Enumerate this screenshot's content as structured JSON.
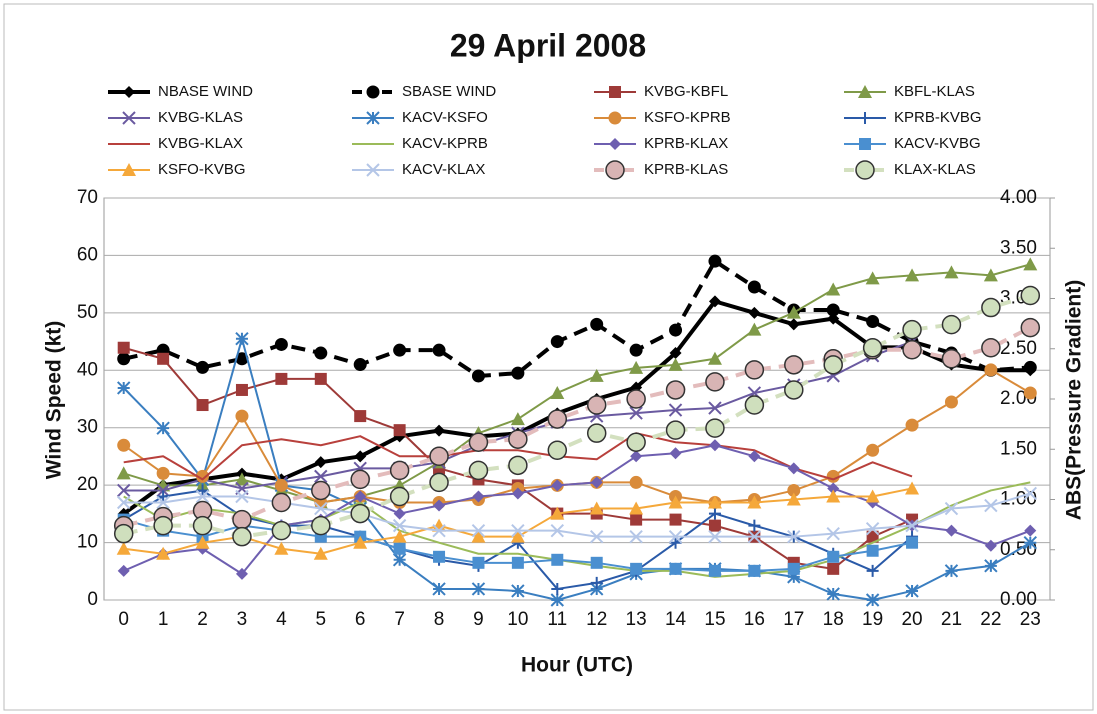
{
  "chart_data": {
    "type": "line",
    "title": "29 April 2008",
    "x_label": "Hour (UTC)",
    "y_label": "Wind Speed (kt)",
    "y2_label": "ABS(Pressure Gradient)",
    "categories": [
      0,
      1,
      2,
      3,
      4,
      5,
      6,
      7,
      8,
      9,
      10,
      11,
      12,
      13,
      14,
      15,
      16,
      17,
      18,
      19,
      20,
      21,
      22,
      23
    ],
    "ylim": [
      0,
      70
    ],
    "yticks": [
      0,
      10,
      20,
      30,
      40,
      50,
      60,
      70
    ],
    "y2lim": [
      0,
      4
    ],
    "y2ticks": [
      {
        "value": 0,
        "label": "0.00"
      },
      {
        "value": 0.5,
        "label": "0.50"
      },
      {
        "value": 1,
        "label": "1.00"
      },
      {
        "value": 1.5,
        "label": "1.50"
      },
      {
        "value": 2,
        "label": "2.00"
      },
      {
        "value": 2.5,
        "label": "2.50"
      },
      {
        "value": 3,
        "label": "3.00"
      },
      {
        "value": 3.5,
        "label": "3.50"
      },
      {
        "value": 4,
        "label": "4.00"
      }
    ],
    "grid": true,
    "series": [
      {
        "name": "NBASE WIND",
        "color": "#000000",
        "marker": "diamond",
        "line_width": 4,
        "dashed": false,
        "values": [
          15,
          20,
          21,
          22,
          21,
          24,
          25,
          28.5,
          29.5,
          28.5,
          29,
          32.5,
          35,
          37,
          43,
          52,
          50,
          48,
          49,
          44,
          44,
          41,
          40,
          40
        ]
      },
      {
        "name": "SBASE WIND",
        "color": "#000000",
        "marker": "circle",
        "line_width": 4,
        "dashed": true,
        "values": [
          42,
          43.5,
          40.5,
          42,
          44.5,
          43,
          41,
          43.5,
          43.5,
          39,
          39.5,
          45,
          48,
          43.5,
          47,
          59,
          54.5,
          50.5,
          50.5,
          48.5,
          45,
          43,
          40,
          40.5
        ]
      },
      {
        "name": "KVBG-KBFL",
        "color": "#9e3a38",
        "marker": "square",
        "line_width": 2,
        "dashed": false,
        "axis": "y2",
        "values": [
          2.51,
          2.4,
          1.94,
          2.09,
          2.2,
          2.2,
          1.83,
          1.69,
          1.31,
          1.2,
          1.14,
          0.86,
          0.86,
          0.8,
          0.8,
          0.74,
          0.63,
          0.37,
          0.31,
          0.63,
          0.8,
          null,
          null,
          null
        ]
      },
      {
        "name": "KBFL-KLAS",
        "color": "#7f9a48",
        "marker": "triangle",
        "line_width": 2,
        "dashed": false,
        "axis": "y2",
        "values": [
          1.26,
          1.14,
          1.14,
          1.2,
          1.09,
          0.97,
          1.03,
          1.14,
          1.37,
          1.66,
          1.8,
          2.06,
          2.23,
          2.31,
          2.34,
          2.4,
          2.69,
          2.86,
          3.09,
          3.2,
          3.23,
          3.26,
          3.23,
          3.34
        ]
      },
      {
        "name": "KVBG-KLAS",
        "color": "#6a5aa0",
        "marker": "x",
        "line_width": 2,
        "dashed": false,
        "axis": "y2",
        "values": [
          1.09,
          1.09,
          1.2,
          1.11,
          1.17,
          1.23,
          1.31,
          1.31,
          1.37,
          1.54,
          1.66,
          1.77,
          1.83,
          1.86,
          1.89,
          1.91,
          2.06,
          2.14,
          2.23,
          2.43,
          2.57,
          null,
          null,
          null
        ]
      },
      {
        "name": "KACV-KSFO",
        "color": "#3a7ec0",
        "marker": "asterisk",
        "line_width": 2,
        "dashed": false,
        "axis": "y2",
        "values": [
          2.11,
          1.71,
          1.2,
          2.6,
          1.14,
          1.09,
          0.91,
          0.4,
          0.11,
          0.11,
          0.09,
          0.0,
          0.11,
          0.26,
          0.31,
          0.31,
          0.29,
          0.23,
          0.06,
          0.0,
          0.09,
          0.29,
          0.34,
          0.57
        ]
      },
      {
        "name": "KSFO-KPRB",
        "color": "#d98b3a",
        "marker": "circle",
        "line_width": 2,
        "dashed": false,
        "axis": "y2",
        "values": [
          1.54,
          1.26,
          1.23,
          1.83,
          1.14,
          0.97,
          1.03,
          0.97,
          0.97,
          1.0,
          1.11,
          1.14,
          1.17,
          1.17,
          1.03,
          0.97,
          1.0,
          1.09,
          1.23,
          1.49,
          1.74,
          1.97,
          2.29,
          2.06
        ]
      },
      {
        "name": "KPRB-KVBG",
        "color": "#2a5aa8",
        "marker": "plus",
        "line_width": 2,
        "dashed": false,
        "axis": "y2",
        "values": [
          0.8,
          1.03,
          1.09,
          0.83,
          0.74,
          0.74,
          0.63,
          0.51,
          0.4,
          0.34,
          0.57,
          0.11,
          0.17,
          0.29,
          0.57,
          0.86,
          0.74,
          0.63,
          0.46,
          0.29,
          0.63,
          null,
          null,
          null
        ]
      },
      {
        "name": "KVBG-KLAX",
        "color": "#b8403c",
        "marker": "none",
        "line_width": 2,
        "dashed": false,
        "axis": "y2",
        "values": [
          1.37,
          1.43,
          1.2,
          1.54,
          1.6,
          1.54,
          1.63,
          1.43,
          1.43,
          1.49,
          1.49,
          1.43,
          1.4,
          1.66,
          1.57,
          1.54,
          1.49,
          1.31,
          1.2,
          1.37,
          1.23,
          null,
          null,
          null
        ]
      },
      {
        "name": "KACV-KPRB",
        "color": "#9bbb59",
        "marker": "none",
        "line_width": 2,
        "dashed": false,
        "axis": "y2",
        "values": [
          1.03,
          0.8,
          0.91,
          0.86,
          0.74,
          0.8,
          0.97,
          0.69,
          0.57,
          0.46,
          0.46,
          0.4,
          0.34,
          0.29,
          0.29,
          0.23,
          0.26,
          0.29,
          0.4,
          0.57,
          0.74,
          0.94,
          1.09,
          1.17
        ]
      },
      {
        "name": "KPRB-KLAX",
        "color": "#6e5fb0",
        "marker": "diamond",
        "line_width": 2,
        "dashed": false,
        "axis": "y2",
        "values": [
          0.29,
          0.46,
          0.51,
          0.26,
          0.74,
          0.8,
          1.03,
          0.86,
          0.94,
          1.03,
          1.06,
          1.14,
          1.17,
          1.43,
          1.46,
          1.54,
          1.43,
          1.31,
          1.11,
          0.97,
          0.74,
          0.69,
          0.54,
          0.69
        ]
      },
      {
        "name": "KACV-KVBG",
        "color": "#4a8fd0",
        "marker": "square",
        "line_width": 2,
        "dashed": false,
        "axis": "y2",
        "values": [
          0.8,
          0.69,
          0.63,
          0.74,
          0.69,
          0.63,
          0.63,
          0.51,
          0.43,
          0.37,
          0.37,
          0.4,
          0.37,
          0.31,
          0.31,
          0.29,
          0.29,
          0.31,
          0.43,
          0.49,
          0.57,
          null,
          null,
          null
        ]
      },
      {
        "name": "KSFO-KVBG",
        "color": "#f5a83a",
        "marker": "triangle",
        "line_width": 2,
        "dashed": false,
        "axis": "y2",
        "values": [
          0.51,
          0.46,
          0.57,
          0.63,
          0.51,
          0.46,
          0.57,
          0.63,
          0.74,
          0.63,
          0.63,
          0.86,
          0.91,
          0.91,
          0.97,
          0.97,
          0.97,
          1.0,
          1.03,
          1.03,
          1.11,
          null,
          null,
          null
        ]
      },
      {
        "name": "KACV-KLAX",
        "color": "#b4c6e7",
        "marker": "x",
        "line_width": 2,
        "dashed": false,
        "axis": "y2",
        "values": [
          0.97,
          0.97,
          1.03,
          1.03,
          0.97,
          0.91,
          0.86,
          0.74,
          0.69,
          0.69,
          0.69,
          0.69,
          0.63,
          0.63,
          0.63,
          0.63,
          0.63,
          0.63,
          0.66,
          0.71,
          0.74,
          0.91,
          0.94,
          1.06
        ]
      },
      {
        "name": "KPRB-KLAS",
        "color": "#e3bcbc",
        "marker": "circle",
        "marker_color": "#d8b4b4",
        "line_width": 4,
        "dashed": true,
        "axis": "y2",
        "values": [
          0.74,
          0.83,
          0.89,
          0.8,
          0.97,
          1.09,
          1.2,
          1.29,
          1.43,
          1.57,
          1.6,
          1.8,
          1.94,
          2.0,
          2.09,
          2.17,
          2.29,
          2.34,
          2.4,
          2.49,
          2.49,
          2.4,
          2.51,
          2.71
        ]
      },
      {
        "name": "KLAX-KLAS",
        "color": "#d3e0bf",
        "marker": "circle",
        "marker_color": "#cfdfbd",
        "line_width": 4,
        "dashed": true,
        "axis": "y2",
        "values": [
          0.66,
          0.74,
          0.74,
          0.63,
          0.69,
          0.74,
          0.86,
          1.03,
          1.17,
          1.29,
          1.34,
          1.49,
          1.66,
          1.57,
          1.69,
          1.71,
          1.94,
          2.09,
          2.34,
          2.51,
          2.69,
          2.74,
          2.91,
          3.03
        ]
      }
    ]
  }
}
